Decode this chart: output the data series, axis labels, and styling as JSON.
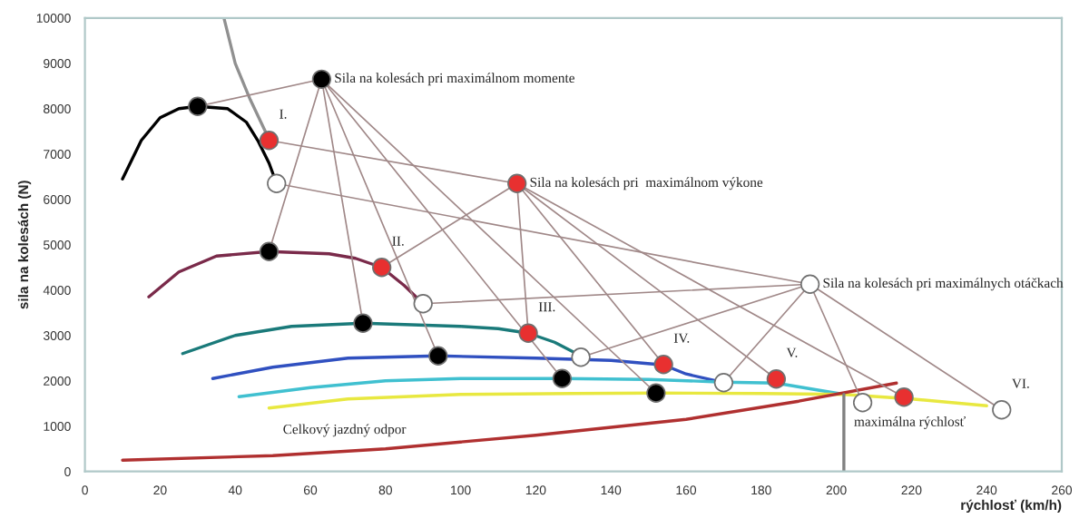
{
  "chart_data": {
    "type": "line",
    "xlabel": "rýchlosť (km/h)",
    "ylabel": "sila na kolesách (N)",
    "xlim": [
      0,
      260
    ],
    "xticks": [
      0,
      20,
      40,
      60,
      80,
      100,
      120,
      140,
      160,
      180,
      200,
      220,
      240,
      260
    ],
    "ylim": [
      0,
      10000
    ],
    "yticks": [
      0,
      1000,
      2000,
      3000,
      4000,
      5000,
      6000,
      7000,
      8000,
      9000,
      10000
    ],
    "grid": false,
    "legend": false,
    "series": [
      {
        "color": "#909090",
        "x": [
          37,
          40,
          44,
          48
        ],
        "values": [
          10000,
          9000,
          8200,
          7500
        ]
      },
      {
        "type": "line",
        "color": "#000000",
        "x": [
          10,
          15,
          20,
          25,
          30,
          38,
          43,
          46,
          49,
          51
        ],
        "values": [
          6450,
          7300,
          7800,
          8000,
          8050,
          8000,
          7700,
          7300,
          6800,
          6350
        ]
      },
      {
        "type": "line",
        "color": "#7a2a4a",
        "x": [
          17,
          25,
          35,
          49,
          65,
          72,
          79,
          85,
          90
        ],
        "values": [
          3850,
          4400,
          4750,
          4850,
          4800,
          4700,
          4500,
          4100,
          3700
        ]
      },
      {
        "type": "line",
        "color": "#1a7a7a",
        "x": [
          26,
          40,
          55,
          74,
          100,
          110,
          118,
          125,
          132
        ],
        "values": [
          2600,
          3000,
          3200,
          3270,
          3200,
          3150,
          3050,
          2850,
          2550
        ]
      },
      {
        "type": "line",
        "color": "#3050c0",
        "x": [
          34,
          50,
          70,
          94,
          120,
          140,
          154,
          160,
          170
        ],
        "values": [
          2050,
          2300,
          2500,
          2550,
          2500,
          2450,
          2350,
          2150,
          1960
        ]
      },
      {
        "type": "line",
        "color": "#40c0d0",
        "x": [
          41,
          60,
          80,
          100,
          127,
          150,
          170,
          184,
          202
        ],
        "values": [
          1650,
          1850,
          2000,
          2050,
          2050,
          2030,
          1970,
          1950,
          1700
        ]
      },
      {
        "type": "line",
        "color": "#e8e840",
        "x": [
          49,
          70,
          100,
          130,
          152,
          180,
          202,
          220,
          240
        ],
        "values": [
          1400,
          1600,
          1700,
          1720,
          1730,
          1720,
          1700,
          1600,
          1450
        ]
      },
      {
        "type": "line",
        "color": "#b03030",
        "x": [
          10,
          50,
          80,
          120,
          160,
          190,
          216
        ],
        "values": [
          250,
          350,
          500,
          800,
          1150,
          1550,
          1950
        ]
      },
      {
        "type": "line",
        "color": "#808080",
        "x": [
          202,
          202
        ],
        "values": [
          0,
          1700
        ]
      },
      {
        "type": "scatter",
        "color": "#000000",
        "x": [
          30,
          49,
          74,
          94,
          127,
          152,
          63
        ],
        "values": [
          8050,
          4850,
          3270,
          2550,
          2050,
          1730,
          8650
        ]
      },
      {
        "type": "scatter",
        "color": "#e83030",
        "x": [
          49,
          79,
          118,
          154,
          184,
          218,
          115
        ],
        "values": [
          7300,
          4500,
          3050,
          2360,
          2040,
          1640,
          6350
        ]
      },
      {
        "type": "scatter",
        "color": "#ffffff",
        "x": [
          51,
          90,
          132,
          170,
          207,
          244,
          193
        ],
        "values": [
          6350,
          3700,
          2520,
          1960,
          1520,
          1360,
          4130
        ]
      }
    ],
    "annotations": [
      {
        "text": "Sila na kolesách pri maximálnom momente",
        "x": 63,
        "y": 8650
      },
      {
        "text": "Sila na kolesách pri  maximálnom výkone",
        "x": 115,
        "y": 6350
      },
      {
        "text": "Sila na kolesách pri maximálnych otáčkach",
        "x": 193,
        "y": 4130
      },
      {
        "text": "I.",
        "x": 49,
        "y": 7300
      },
      {
        "text": "II.",
        "x": 79,
        "y": 4500
      },
      {
        "text": "III.",
        "x": 118,
        "y": 3050
      },
      {
        "text": "IV.",
        "x": 154,
        "y": 2360
      },
      {
        "text": "V.",
        "x": 184,
        "y": 2040
      },
      {
        "text": "VI.",
        "x": 244,
        "y": 1360
      },
      {
        "text": "Celkový jazdný odpor",
        "x": 50,
        "y": 350
      },
      {
        "text": "maximálna rýchlosť",
        "x": 202,
        "y": 520
      }
    ]
  }
}
